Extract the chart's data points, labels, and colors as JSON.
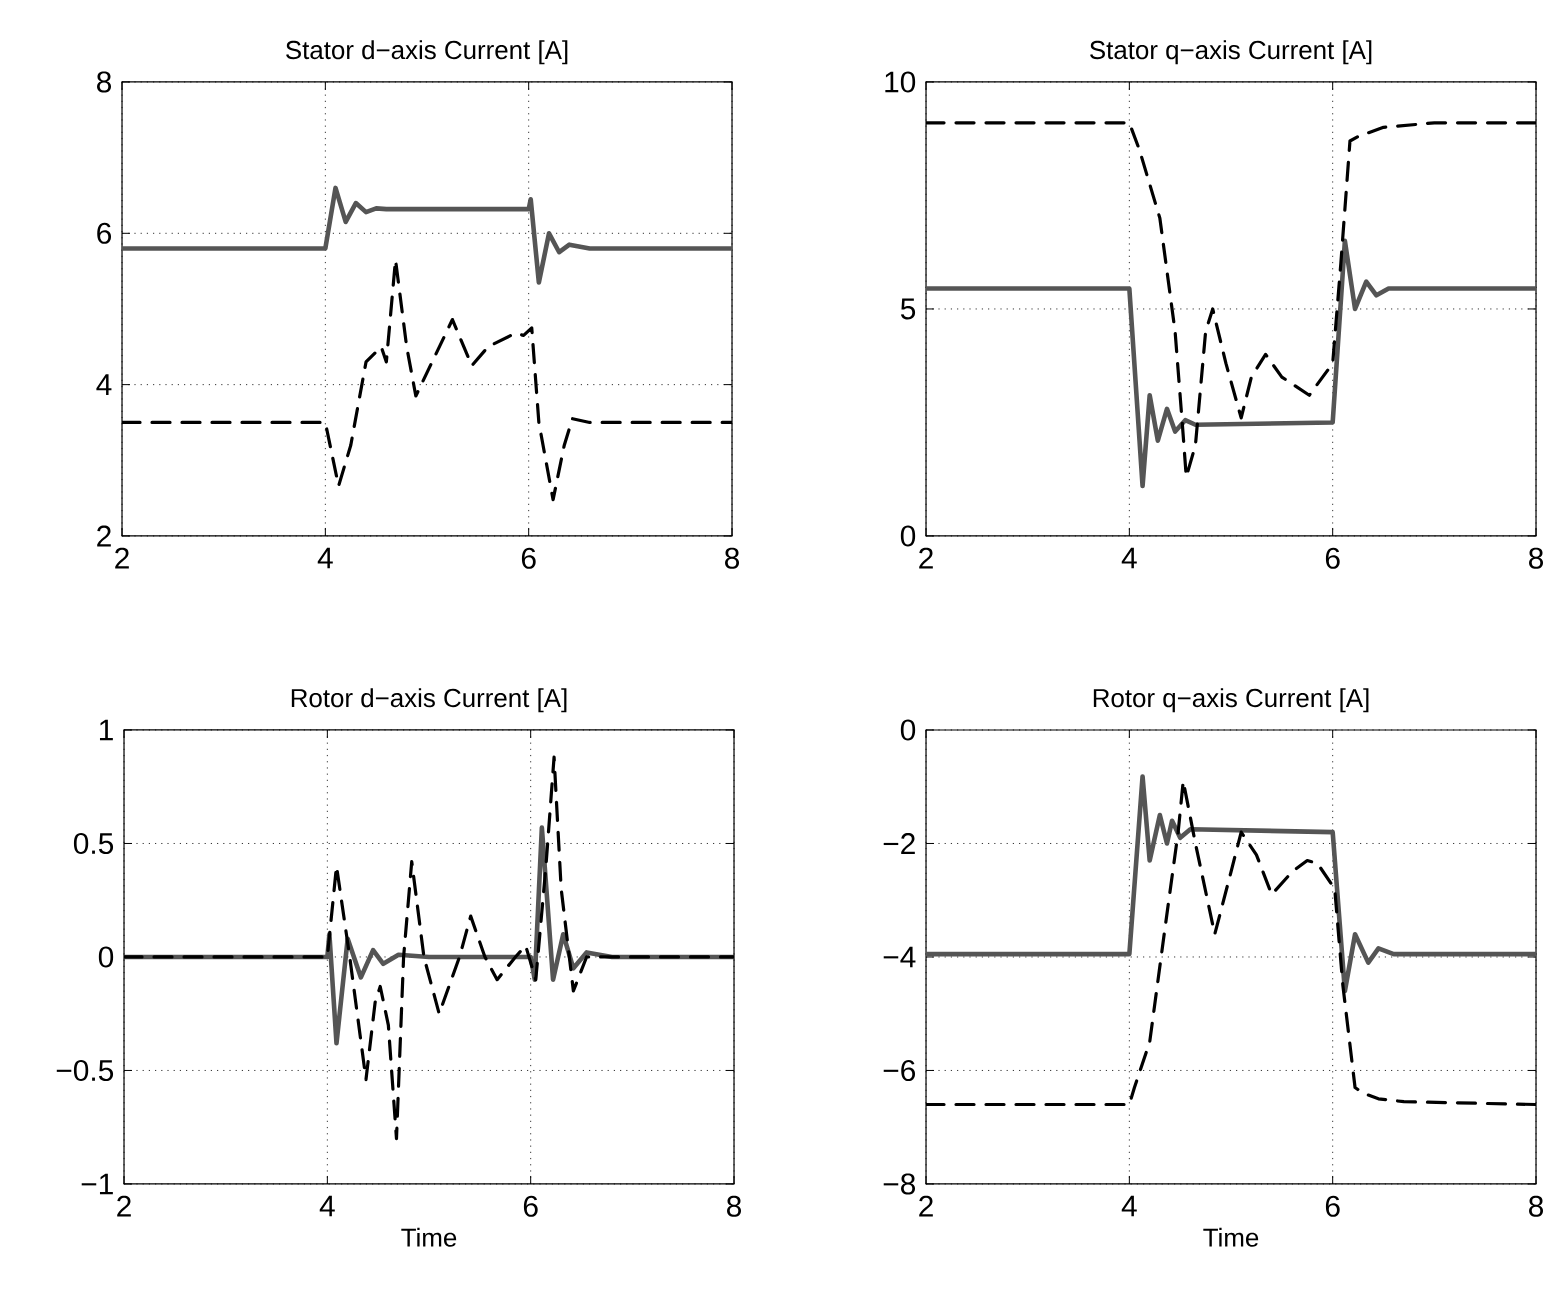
{
  "chart_data": [
    {
      "type": "line",
      "title": "Stator d−axis Current [A]",
      "xlim": [
        2,
        8
      ],
      "ylim": [
        2,
        8
      ],
      "xticks": [
        2,
        4,
        6,
        8
      ],
      "yticks": [
        2,
        4,
        6,
        8
      ],
      "grid": true,
      "series": [
        {
          "color": "#555555",
          "line_style": "solid",
          "x": [
            2,
            4.0,
            4.1,
            4.2,
            4.3,
            4.4,
            4.5,
            4.6,
            6.0,
            6.02,
            6.1,
            6.2,
            6.3,
            6.4,
            6.6,
            8
          ],
          "values": [
            5.8,
            5.8,
            6.6,
            6.15,
            6.4,
            6.28,
            6.33,
            6.32,
            6.32,
            6.45,
            5.35,
            6.0,
            5.75,
            5.85,
            5.8,
            5.8
          ]
        },
        {
          "color": "#000000",
          "line_style": "dashed",
          "x": [
            2,
            4.0,
            4.13,
            4.25,
            4.4,
            4.55,
            4.6,
            4.69,
            4.8,
            4.89,
            5.05,
            5.25,
            5.44,
            5.6,
            5.87,
            5.95,
            6.03,
            6.1,
            6.24,
            6.35,
            6.43,
            6.6,
            8
          ],
          "values": [
            3.5,
            3.5,
            2.66,
            3.2,
            4.3,
            4.5,
            4.3,
            5.65,
            4.5,
            3.85,
            4.3,
            4.86,
            4.25,
            4.5,
            4.68,
            4.65,
            4.75,
            3.5,
            2.48,
            3.2,
            3.55,
            3.5,
            3.5
          ]
        }
      ]
    },
    {
      "type": "line",
      "title": "Stator q−axis Current [A]",
      "xlim": [
        2,
        8
      ],
      "ylim": [
        0,
        10
      ],
      "xticks": [
        2,
        4,
        6,
        8
      ],
      "yticks": [
        0,
        5,
        10
      ],
      "grid": true,
      "series": [
        {
          "color": "#555555",
          "line_style": "solid",
          "x": [
            2,
            4.0,
            4.13,
            4.2,
            4.28,
            4.37,
            4.45,
            4.55,
            4.65,
            6.0,
            6.12,
            6.22,
            6.33,
            6.43,
            6.55,
            8
          ],
          "values": [
            5.45,
            5.45,
            1.1,
            3.1,
            2.1,
            2.8,
            2.3,
            2.55,
            2.45,
            2.5,
            6.5,
            5.0,
            5.6,
            5.3,
            5.45,
            5.45
          ]
        },
        {
          "color": "#000000",
          "line_style": "dashed",
          "x": [
            2,
            4.0,
            4.1,
            4.3,
            4.45,
            4.52,
            4.56,
            4.65,
            4.75,
            4.82,
            4.95,
            5.1,
            5.2,
            5.34,
            5.5,
            5.77,
            6.0,
            6.08,
            6.17,
            6.25,
            6.5,
            7,
            8
          ],
          "values": [
            9.1,
            9.1,
            8.5,
            7.0,
            4.5,
            2.5,
            1.3,
            2.0,
            4.5,
            5.0,
            3.8,
            2.6,
            3.5,
            4.0,
            3.5,
            3.1,
            3.8,
            6.0,
            8.7,
            8.8,
            9.0,
            9.1,
            9.1
          ]
        }
      ]
    },
    {
      "type": "line",
      "title": "Rotor d−axis Current [A]",
      "xlabel": "Time",
      "xlim": [
        2,
        8
      ],
      "ylim": [
        -1,
        1
      ],
      "xticks": [
        2,
        4,
        6,
        8
      ],
      "yticks": [
        {
          "value": -1,
          "label": "−1"
        },
        {
          "value": -0.5,
          "label": "−0.5"
        },
        0,
        0.5,
        1
      ],
      "grid": true,
      "series": [
        {
          "color": "#555555",
          "line_style": "solid",
          "x": [
            2,
            4.0,
            4.02,
            4.09,
            4.2,
            4.33,
            4.45,
            4.55,
            4.7,
            5.0,
            6.0,
            6.04,
            6.11,
            6.22,
            6.32,
            6.42,
            6.55,
            6.8,
            8
          ],
          "values": [
            0,
            0,
            0.1,
            -0.38,
            0.08,
            -0.09,
            0.03,
            -0.03,
            0.01,
            0,
            0,
            -0.1,
            0.57,
            -0.1,
            0.1,
            -0.05,
            0.02,
            0,
            0
          ]
        },
        {
          "color": "#000000",
          "line_style": "dashed",
          "x": [
            2,
            4.0,
            4.09,
            4.22,
            4.38,
            4.47,
            4.52,
            4.6,
            4.68,
            4.75,
            4.83,
            4.95,
            5.1,
            5.3,
            5.41,
            5.55,
            5.67,
            5.85,
            5.95,
            6.05,
            6.15,
            6.23,
            6.3,
            6.42,
            6.55,
            8
          ],
          "values": [
            0,
            0,
            0.4,
            0,
            -0.54,
            -0.2,
            -0.13,
            -0.3,
            -0.8,
            0,
            0.42,
            0,
            -0.25,
            0,
            0.18,
            0,
            -0.1,
            0,
            0.05,
            -0.1,
            0.4,
            0.88,
            0.3,
            -0.15,
            0,
            0
          ]
        }
      ]
    },
    {
      "type": "line",
      "title": "Rotor q−axis Current [A]",
      "xlabel": "Time",
      "xlim": [
        2,
        8
      ],
      "ylim": [
        -8,
        0
      ],
      "xticks": [
        2,
        4,
        6,
        8
      ],
      "yticks": [
        {
          "value": -8,
          "label": "−8"
        },
        {
          "value": -6,
          "label": "−6"
        },
        {
          "value": -4,
          "label": "−4"
        },
        {
          "value": -2,
          "label": "−2"
        },
        0
      ],
      "grid": true,
      "series": [
        {
          "color": "#555555",
          "line_style": "solid",
          "x": [
            2,
            4.0,
            4.13,
            4.2,
            4.3,
            4.37,
            4.42,
            4.5,
            4.6,
            6.0,
            6.12,
            6.22,
            6.35,
            6.45,
            6.6,
            8
          ],
          "values": [
            -3.95,
            -3.95,
            -0.82,
            -2.3,
            -1.5,
            -2.0,
            -1.6,
            -1.9,
            -1.75,
            -1.8,
            -4.6,
            -3.6,
            -4.1,
            -3.85,
            -3.95,
            -3.95
          ]
        },
        {
          "color": "#000000",
          "line_style": "dashed",
          "x": [
            2,
            4.0,
            4.05,
            4.2,
            4.35,
            4.48,
            4.53,
            4.65,
            4.84,
            5.0,
            5.1,
            5.25,
            5.4,
            5.6,
            5.75,
            5.85,
            6.02,
            6.1,
            6.22,
            6.3,
            6.45,
            6.7,
            8
          ],
          "values": [
            -6.6,
            -6.6,
            -6.3,
            -5.5,
            -3.5,
            -1.8,
            -0.9,
            -2.0,
            -3.6,
            -2.5,
            -1.8,
            -2.2,
            -2.9,
            -2.5,
            -2.3,
            -2.35,
            -2.8,
            -4.5,
            -6.3,
            -6.4,
            -6.5,
            -6.55,
            -6.6
          ]
        }
      ]
    }
  ]
}
